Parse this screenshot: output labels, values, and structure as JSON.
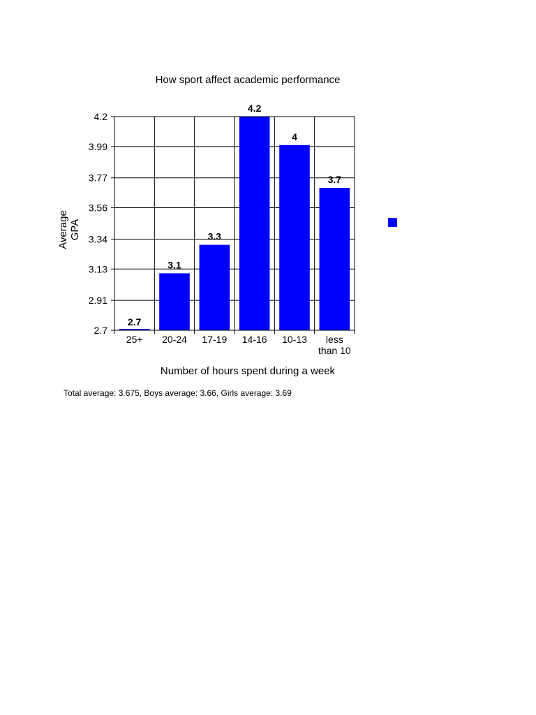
{
  "chart_data": {
    "type": "bar",
    "title": "How sport affect academic performance",
    "xlabel": "Number of hours spent during a week",
    "ylabel": [
      "Average",
      "GPA"
    ],
    "categories": [
      [
        "25+"
      ],
      [
        "20-24"
      ],
      [
        "17-19"
      ],
      [
        "14-16"
      ],
      [
        "10-13"
      ],
      [
        "less",
        "than 10"
      ]
    ],
    "values": [
      2.7,
      3.1,
      3.3,
      4.2,
      4.0,
      3.7
    ],
    "data_labels": [
      "2.7",
      "3.1",
      "3.3",
      "4.2",
      "4",
      "3.7"
    ],
    "ylim": [
      2.7,
      4.2
    ],
    "yticks": [
      2.7,
      2.91,
      3.13,
      3.34,
      3.56,
      3.77,
      3.99,
      4.2
    ],
    "ytick_labels": [
      "2.7",
      "2.91",
      "3.13",
      "3.34",
      "3.56",
      "3.77",
      "3.99",
      "4.2"
    ],
    "grid": true,
    "bar_color": "#0000ff",
    "legend": {
      "placement": "right",
      "marker_color": "#0000ff"
    }
  },
  "footnote": "Total average: 3.675, Boys average: 3.66, Girls average: 3.69"
}
